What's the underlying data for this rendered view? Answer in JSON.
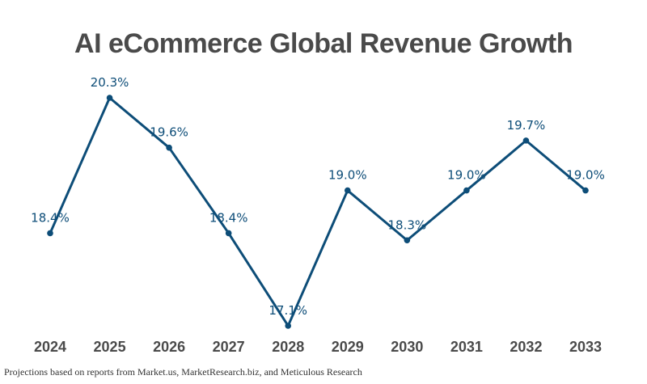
{
  "chart_data": {
    "type": "line",
    "title": "AI eCommerce Global Revenue Growth",
    "xlabel": "",
    "ylabel": "",
    "categories": [
      "2024",
      "2025",
      "2026",
      "2027",
      "2028",
      "2029",
      "2030",
      "2031",
      "2032",
      "2033"
    ],
    "series": [
      {
        "name": "Revenue Growth",
        "values": [
          18.4,
          20.3,
          19.6,
          18.4,
          17.1,
          19.0,
          18.3,
          19.0,
          19.7,
          19.0
        ],
        "labels": [
          "18.4%",
          "20.3%",
          "19.6%",
          "18.4%",
          "17.1%",
          "19.0%",
          "18.3%",
          "19.0%",
          "19.7%",
          "19.0%"
        ],
        "color": "#0d4d78"
      }
    ],
    "ylim": [
      17.1,
      20.3
    ],
    "grid": false,
    "legend": "none",
    "y_axis_visible": false
  },
  "footnote": "Projections based on reports from Market.us, MarketResearch.biz, and Meticulous Research"
}
